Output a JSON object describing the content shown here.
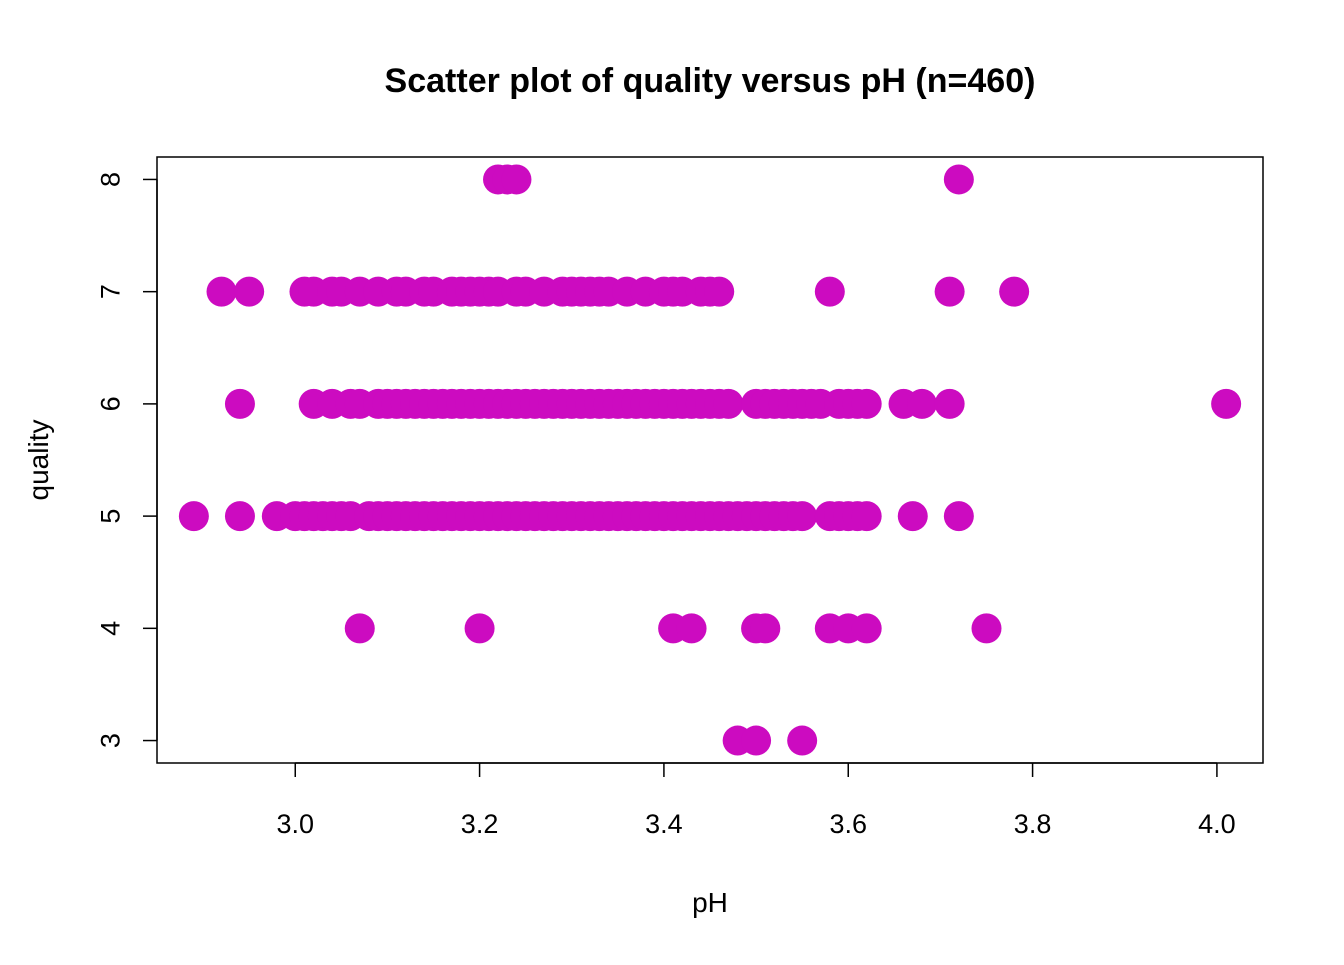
{
  "chart_data": {
    "type": "scatter",
    "title": "Scatter plot of quality versus pH (n=460)",
    "xlabel": "pH",
    "ylabel": "quality",
    "xlim": [
      2.85,
      4.05
    ],
    "ylim": [
      2.8,
      8.2
    ],
    "x_ticks": [
      3.0,
      3.2,
      3.4,
      3.6,
      3.8,
      4.0
    ],
    "x_tick_labels": [
      "3.0",
      "3.2",
      "3.4",
      "3.6",
      "3.8",
      "4.0"
    ],
    "y_ticks": [
      3,
      4,
      5,
      6,
      7,
      8
    ],
    "y_tick_labels": [
      "3",
      "4",
      "5",
      "6",
      "7",
      "8"
    ],
    "grid": false,
    "point_color": "#CC0BC0",
    "series": [
      {
        "points": [
          [
            3.22,
            8
          ],
          [
            3.23,
            8
          ],
          [
            3.24,
            8
          ],
          [
            3.72,
            8
          ],
          [
            2.92,
            7
          ],
          [
            2.95,
            7
          ],
          [
            3.01,
            7
          ],
          [
            3.02,
            7
          ],
          [
            3.04,
            7
          ],
          [
            3.05,
            7
          ],
          [
            3.07,
            7
          ],
          [
            3.09,
            7
          ],
          [
            3.11,
            7
          ],
          [
            3.12,
            7
          ],
          [
            3.14,
            7
          ],
          [
            3.15,
            7
          ],
          [
            3.17,
            7
          ],
          [
            3.18,
            7
          ],
          [
            3.19,
            7
          ],
          [
            3.2,
            7
          ],
          [
            3.21,
            7
          ],
          [
            3.22,
            7
          ],
          [
            3.24,
            7
          ],
          [
            3.25,
            7
          ],
          [
            3.27,
            7
          ],
          [
            3.29,
            7
          ],
          [
            3.3,
            7
          ],
          [
            3.31,
            7
          ],
          [
            3.32,
            7
          ],
          [
            3.33,
            7
          ],
          [
            3.34,
            7
          ],
          [
            3.36,
            7
          ],
          [
            3.38,
            7
          ],
          [
            3.4,
            7
          ],
          [
            3.41,
            7
          ],
          [
            3.42,
            7
          ],
          [
            3.44,
            7
          ],
          [
            3.45,
            7
          ],
          [
            3.46,
            7
          ],
          [
            3.58,
            7
          ],
          [
            3.71,
            7
          ],
          [
            3.78,
            7
          ],
          [
            2.94,
            6
          ],
          [
            3.02,
            6
          ],
          [
            3.04,
            6
          ],
          [
            3.06,
            6
          ],
          [
            3.07,
            6
          ],
          [
            3.09,
            6
          ],
          [
            3.1,
            6
          ],
          [
            3.11,
            6
          ],
          [
            3.12,
            6
          ],
          [
            3.13,
            6
          ],
          [
            3.14,
            6
          ],
          [
            3.15,
            6
          ],
          [
            3.16,
            6
          ],
          [
            3.17,
            6
          ],
          [
            3.18,
            6
          ],
          [
            3.19,
            6
          ],
          [
            3.2,
            6
          ],
          [
            3.21,
            6
          ],
          [
            3.22,
            6
          ],
          [
            3.23,
            6
          ],
          [
            3.24,
            6
          ],
          [
            3.25,
            6
          ],
          [
            3.26,
            6
          ],
          [
            3.27,
            6
          ],
          [
            3.28,
            6
          ],
          [
            3.29,
            6
          ],
          [
            3.3,
            6
          ],
          [
            3.31,
            6
          ],
          [
            3.32,
            6
          ],
          [
            3.33,
            6
          ],
          [
            3.34,
            6
          ],
          [
            3.35,
            6
          ],
          [
            3.36,
            6
          ],
          [
            3.37,
            6
          ],
          [
            3.38,
            6
          ],
          [
            3.39,
            6
          ],
          [
            3.4,
            6
          ],
          [
            3.41,
            6
          ],
          [
            3.42,
            6
          ],
          [
            3.43,
            6
          ],
          [
            3.44,
            6
          ],
          [
            3.45,
            6
          ],
          [
            3.46,
            6
          ],
          [
            3.47,
            6
          ],
          [
            3.5,
            6
          ],
          [
            3.51,
            6
          ],
          [
            3.52,
            6
          ],
          [
            3.53,
            6
          ],
          [
            3.54,
            6
          ],
          [
            3.55,
            6
          ],
          [
            3.56,
            6
          ],
          [
            3.57,
            6
          ],
          [
            3.59,
            6
          ],
          [
            3.6,
            6
          ],
          [
            3.61,
            6
          ],
          [
            3.62,
            6
          ],
          [
            3.66,
            6
          ],
          [
            3.68,
            6
          ],
          [
            3.71,
            6
          ],
          [
            4.01,
            6
          ],
          [
            2.89,
            5
          ],
          [
            2.94,
            5
          ],
          [
            2.98,
            5
          ],
          [
            3.0,
            5
          ],
          [
            3.01,
            5
          ],
          [
            3.02,
            5
          ],
          [
            3.03,
            5
          ],
          [
            3.04,
            5
          ],
          [
            3.05,
            5
          ],
          [
            3.06,
            5
          ],
          [
            3.08,
            5
          ],
          [
            3.09,
            5
          ],
          [
            3.1,
            5
          ],
          [
            3.11,
            5
          ],
          [
            3.12,
            5
          ],
          [
            3.13,
            5
          ],
          [
            3.14,
            5
          ],
          [
            3.15,
            5
          ],
          [
            3.16,
            5
          ],
          [
            3.17,
            5
          ],
          [
            3.18,
            5
          ],
          [
            3.19,
            5
          ],
          [
            3.2,
            5
          ],
          [
            3.21,
            5
          ],
          [
            3.22,
            5
          ],
          [
            3.23,
            5
          ],
          [
            3.24,
            5
          ],
          [
            3.25,
            5
          ],
          [
            3.26,
            5
          ],
          [
            3.27,
            5
          ],
          [
            3.28,
            5
          ],
          [
            3.29,
            5
          ],
          [
            3.3,
            5
          ],
          [
            3.31,
            5
          ],
          [
            3.32,
            5
          ],
          [
            3.33,
            5
          ],
          [
            3.34,
            5
          ],
          [
            3.35,
            5
          ],
          [
            3.36,
            5
          ],
          [
            3.37,
            5
          ],
          [
            3.38,
            5
          ],
          [
            3.39,
            5
          ],
          [
            3.4,
            5
          ],
          [
            3.41,
            5
          ],
          [
            3.42,
            5
          ],
          [
            3.43,
            5
          ],
          [
            3.44,
            5
          ],
          [
            3.45,
            5
          ],
          [
            3.46,
            5
          ],
          [
            3.47,
            5
          ],
          [
            3.48,
            5
          ],
          [
            3.49,
            5
          ],
          [
            3.5,
            5
          ],
          [
            3.51,
            5
          ],
          [
            3.52,
            5
          ],
          [
            3.53,
            5
          ],
          [
            3.54,
            5
          ],
          [
            3.55,
            5
          ],
          [
            3.58,
            5
          ],
          [
            3.59,
            5
          ],
          [
            3.6,
            5
          ],
          [
            3.61,
            5
          ],
          [
            3.62,
            5
          ],
          [
            3.67,
            5
          ],
          [
            3.72,
            5
          ],
          [
            3.07,
            4
          ],
          [
            3.2,
            4
          ],
          [
            3.41,
            4
          ],
          [
            3.43,
            4
          ],
          [
            3.5,
            4
          ],
          [
            3.51,
            4
          ],
          [
            3.58,
            4
          ],
          [
            3.6,
            4
          ],
          [
            3.62,
            4
          ],
          [
            3.75,
            4
          ],
          [
            3.48,
            3
          ],
          [
            3.5,
            3
          ],
          [
            3.55,
            3
          ]
        ]
      }
    ]
  }
}
